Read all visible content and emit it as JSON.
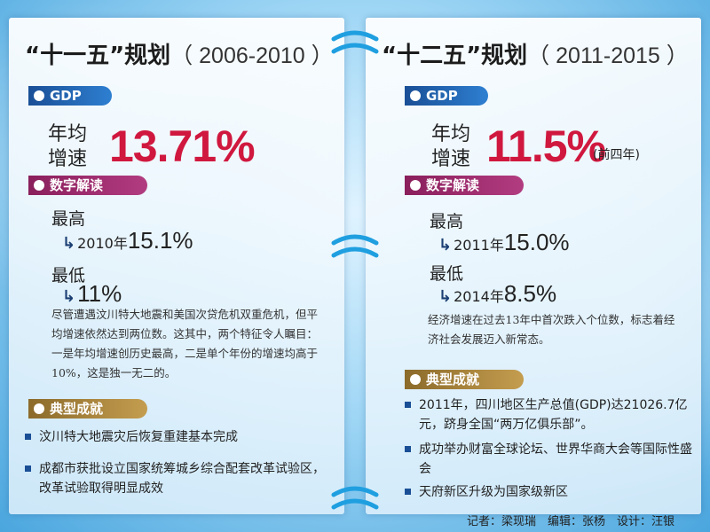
{
  "left": {
    "title_main": "“十一五”规划",
    "title_years": "（ 2006-2010 ）",
    "gdp_tag": "GDP",
    "gdp_label": "年均增速",
    "gdp_value": "13.71%",
    "digits_tag": "数字解读",
    "highest_label": "最高",
    "highest_year": "2010年",
    "highest_value": "15.1%",
    "lowest_label": "最低",
    "lowest_value": "11%",
    "description": "尽管遭遇汶川特大地震和美国次贷危机双重危机，但平均增速依然达到两位数。这其中，两个特征令人瞩目：一是年均增速创历史最高，二是单个年份的增速均高于10%，这是独一无二的。",
    "achievements_tag": "典型成就",
    "achievements": [
      "汶川特大地震灾后恢复重建基本完成",
      "成都市获批设立国家统筹城乡综合配套改革试验区，改革试验取得明显成效"
    ]
  },
  "right": {
    "title_main": "“十二五”规划",
    "title_years": "（ 2011-2015 ）",
    "gdp_tag": "GDP",
    "gdp_label": "年均增速",
    "gdp_value": "11.5%",
    "gdp_note": "(前四年)",
    "digits_tag": "数字解读",
    "highest_label": "最高",
    "highest_year": "2011年",
    "highest_value": "15.0%",
    "lowest_label": "最低",
    "lowest_year": "2014年",
    "lowest_value": "8.5%",
    "description": "经济增速在过去13年中首次跌入个位数，标志着经济社会发展迈入新常态。",
    "achievements_tag": "典型成就",
    "achievements": [
      "2011年，四川地区生产总值(GDP)达21026.7亿元，跻身全国“两万亿俱乐部”。",
      "成功举办财富全球论坛、世界华商大会等国际性盛会",
      "天府新区升级为国家级新区"
    ]
  },
  "credits": "记者：梁现瑞　编辑：张杨　设计：汪银",
  "colors": {
    "accent_red": "#d0183f",
    "tag_blue": "#1a4f96",
    "tag_purple": "#8a1f5c",
    "tag_gold": "#8b6a2a"
  }
}
